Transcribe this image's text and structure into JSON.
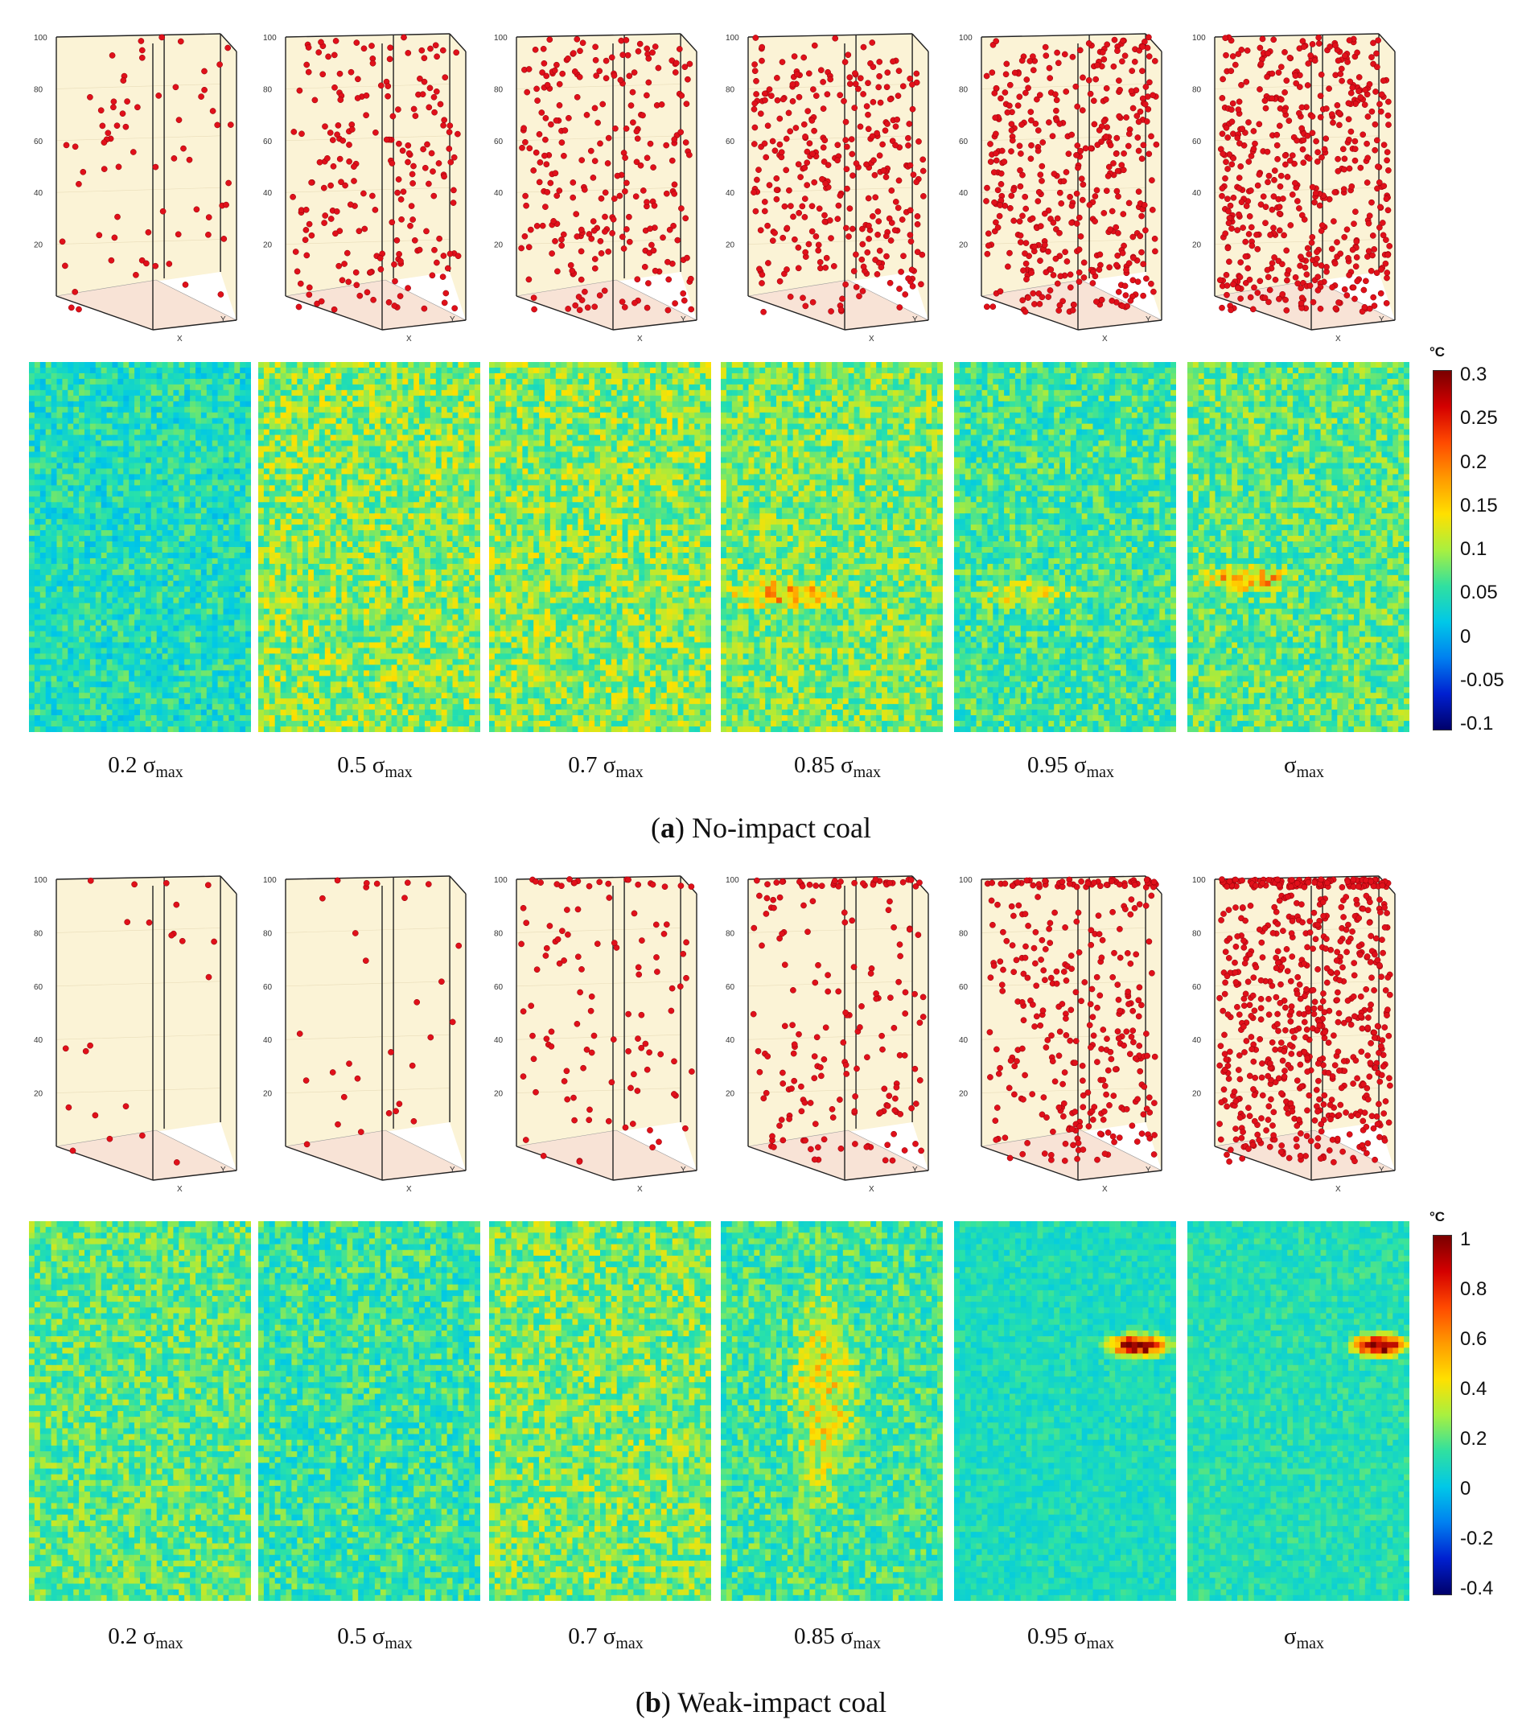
{
  "stages": [
    {
      "prefix": "0.2 ",
      "sym": "σ",
      "sub": "max"
    },
    {
      "prefix": "0.5 ",
      "sym": "σ",
      "sub": "max"
    },
    {
      "prefix": "0.7 ",
      "sym": "σ",
      "sub": "max"
    },
    {
      "prefix": "0.85 ",
      "sym": "σ",
      "sub": "max"
    },
    {
      "prefix": "0.95 ",
      "sym": "σ",
      "sub": "max"
    },
    {
      "prefix": "",
      "sym": "σ",
      "sub": "max"
    }
  ],
  "panel_a": {
    "caption_paren_open": "(",
    "caption_letter": "a",
    "caption_paren_close": ")",
    "caption_text": " No-impact coal",
    "ae_event_counts": [
      70,
      210,
      260,
      330,
      420,
      520
    ],
    "colorbar": {
      "unit": "°C",
      "ticks": [
        "0.3",
        "0.25",
        "0.2",
        "0.15",
        "0.1",
        "0.05",
        "0",
        "-0.05",
        "-0.1"
      ]
    }
  },
  "panel_b": {
    "caption_paren_open": "(",
    "caption_letter": "b",
    "caption_paren_close": ")",
    "caption_text": " Weak-impact coal",
    "ae_event_counts": [
      22,
      30,
      110,
      180,
      330,
      700
    ],
    "colorbar": {
      "unit": "°C",
      "ticks": [
        "1",
        "0.8",
        "0.6",
        "0.4",
        "0.2",
        "0",
        "-0.2",
        "-0.4"
      ]
    }
  },
  "cube_axis_labels": {
    "z_ticks": [
      "100",
      "80",
      "60",
      "40",
      "20"
    ],
    "x_label": "X",
    "y_label": "Y"
  },
  "colors": {
    "event": "#e0101a",
    "box_fill": "#fbf3d6",
    "floor_fill": "#f8e3d6"
  }
}
